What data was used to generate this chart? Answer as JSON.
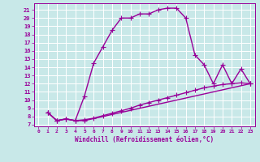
{
  "xlabel": "Windchill (Refroidissement éolien,°C)",
  "bg_color": "#c8e8e8",
  "line_color": "#990099",
  "grid_color": "#ffffff",
  "xlim": [
    -0.5,
    23.5
  ],
  "ylim": [
    6.8,
    21.8
  ],
  "xticks": [
    0,
    1,
    2,
    3,
    4,
    5,
    6,
    7,
    8,
    9,
    10,
    11,
    12,
    13,
    14,
    15,
    16,
    17,
    18,
    19,
    20,
    21,
    22,
    23
  ],
  "yticks": [
    7,
    8,
    9,
    10,
    11,
    12,
    13,
    14,
    15,
    16,
    17,
    18,
    19,
    20,
    21
  ],
  "curve1_x": [
    1,
    2,
    3,
    4,
    5,
    6,
    7,
    8,
    9,
    10,
    11,
    12,
    13,
    14,
    15,
    16,
    17,
    18,
    19,
    20,
    21,
    22,
    23
  ],
  "curve1_y": [
    8.5,
    7.5,
    7.7,
    7.5,
    10.5,
    14.5,
    16.5,
    18.5,
    20.0,
    20.0,
    20.5,
    20.5,
    21.0,
    21.2,
    21.2,
    20.0,
    15.5,
    14.3,
    12.0,
    14.3,
    12.0,
    13.8,
    12.0
  ],
  "curve2_x": [
    1,
    2,
    3,
    4,
    5,
    6,
    7,
    8,
    9,
    10,
    11,
    12,
    13,
    14,
    15,
    16,
    17,
    18,
    19,
    20,
    21,
    22,
    23
  ],
  "curve2_y": [
    8.5,
    7.5,
    7.7,
    7.5,
    7.6,
    7.8,
    8.1,
    8.4,
    8.7,
    9.0,
    9.4,
    9.7,
    10.0,
    10.3,
    10.6,
    10.9,
    11.2,
    11.5,
    11.7,
    11.9,
    12.0,
    12.1,
    12.0
  ],
  "curve3_x": [
    1,
    2,
    3,
    4,
    5,
    23
  ],
  "curve3_y": [
    8.5,
    7.5,
    7.7,
    7.5,
    7.5,
    12.0
  ],
  "marker": "+",
  "markersize": 4,
  "linewidth": 1.0
}
